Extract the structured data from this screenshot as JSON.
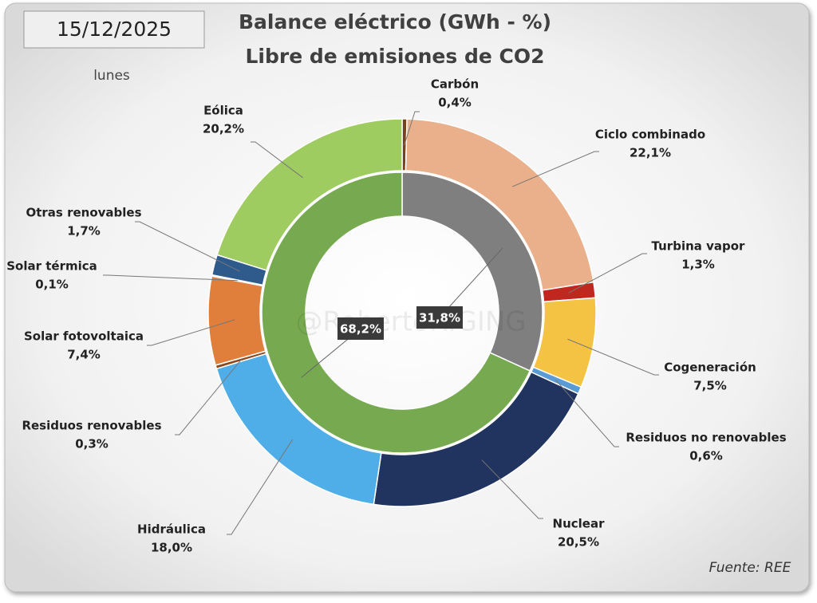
{
  "chart_data": {
    "type": "donut",
    "title": "Balance eléctrico (GWh - %)",
    "subtitle": "Libre de emisiones de CO2",
    "date": "15/12/2025",
    "weekday": "lunes",
    "source": "Fuente: REE",
    "watermark": "@RobertoRIGING",
    "series": [
      {
        "categories": [
          "Carbón",
          "Ciclo combinado",
          "Turbina vapor",
          "Cogeneración",
          "Residuos no renovables",
          "Nuclear",
          "Hidráulica",
          "Residuos renovables",
          "Solar fotovoltaica",
          "Solar térmica",
          "Otras renovables",
          "Eólica"
        ],
        "values": [
          0.4,
          22.1,
          1.3,
          7.5,
          0.6,
          20.5,
          18.0,
          0.3,
          7.4,
          0.1,
          1.7,
          20.2
        ],
        "value_labels": [
          "0,4%",
          "22,1%",
          "1,3%",
          "7,5%",
          "0,6%",
          "20,5%",
          "18,0%",
          "0,3%",
          "7,4%",
          "0,1%",
          "1,7%",
          "20,2%"
        ],
        "colors": [
          "#7b3f1a",
          "#e9b08b",
          "#c0281f",
          "#f4c343",
          "#5b9bd5",
          "#21335f",
          "#4faee8",
          "#8a4a1e",
          "#e07f3c",
          "#c00000",
          "#2e5a8c",
          "#9fcc60"
        ]
      },
      {
        "values": [
          31.8,
          68.2
        ],
        "value_labels": [
          "31,8%",
          "68,2%"
        ],
        "colors": [
          "#7f7f7f",
          "#77aa50"
        ]
      }
    ]
  }
}
